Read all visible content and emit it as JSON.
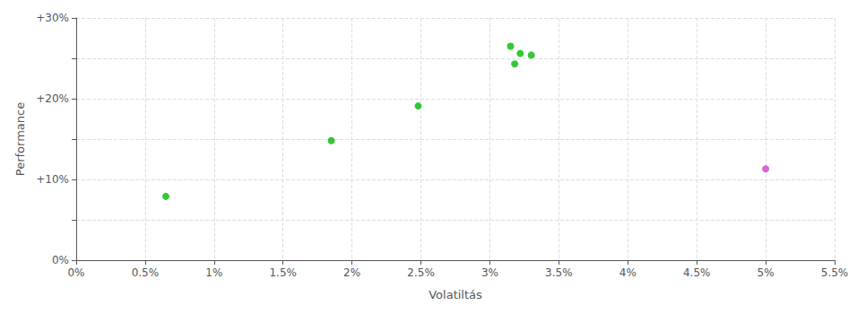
{
  "chart_data": {
    "type": "scatter",
    "xlabel": "Volatiltás",
    "ylabel": "Performance",
    "xlim": [
      0.0,
      0.055
    ],
    "ylim": [
      0.0,
      0.3
    ],
    "xticks": [
      {
        "value": 0.0,
        "label": "0%"
      },
      {
        "value": 0.005,
        "label": "0.5%"
      },
      {
        "value": 0.01,
        "label": "1%"
      },
      {
        "value": 0.015,
        "label": "1.5%"
      },
      {
        "value": 0.02,
        "label": "2%"
      },
      {
        "value": 0.025,
        "label": "2.5%"
      },
      {
        "value": 0.03,
        "label": "3%"
      },
      {
        "value": 0.035,
        "label": "3.5%"
      },
      {
        "value": 0.04,
        "label": "4%"
      },
      {
        "value": 0.045,
        "label": "4.5%"
      },
      {
        "value": 0.05,
        "label": "5%"
      },
      {
        "value": 0.055,
        "label": "5.5%"
      }
    ],
    "yticks": [
      {
        "value": 0.0,
        "label": "0%"
      },
      {
        "value": 0.05,
        "label": ""
      },
      {
        "value": 0.1,
        "label": "+10%"
      },
      {
        "value": 0.15,
        "label": ""
      },
      {
        "value": 0.2,
        "label": "+20%"
      },
      {
        "value": 0.25,
        "label": ""
      },
      {
        "value": 0.3,
        "label": "+30%"
      }
    ],
    "grid": true,
    "series": [
      {
        "color": "#00bb00",
        "values": [
          [
            0.0065,
            0.079
          ],
          [
            0.0185,
            0.148
          ],
          [
            0.0248,
            0.191
          ],
          [
            0.0315,
            0.265
          ],
          [
            0.0322,
            0.256
          ],
          [
            0.033,
            0.254
          ],
          [
            0.0318,
            0.243
          ]
        ]
      },
      {
        "color": "#cc44cc",
        "values": [
          [
            0.05,
            0.113
          ]
        ]
      }
    ]
  }
}
